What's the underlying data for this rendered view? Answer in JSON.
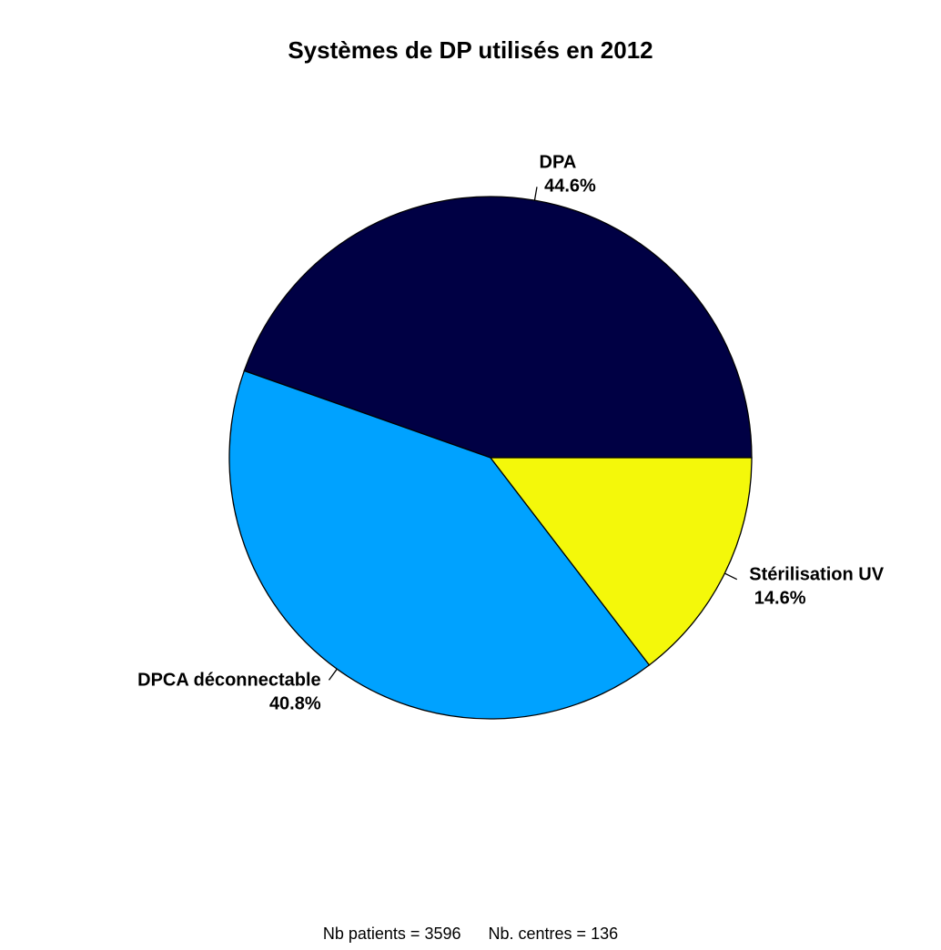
{
  "chart_data": {
    "type": "pie",
    "title": "Systèmes de DP utilisés en 2012",
    "slices": [
      {
        "label": "DPA",
        "value": 44.6,
        "percent_label": "44.6%",
        "color": "#000044"
      },
      {
        "label": "DPCA déconnectable",
        "value": 40.8,
        "percent_label": "40.8%",
        "color": "#00A2FF"
      },
      {
        "label": "Stérilisation UV",
        "value": 14.6,
        "percent_label": "14.6%",
        "color": "#F4F80A"
      }
    ],
    "start_angle_deg": 0,
    "direction": "counterclockwise"
  },
  "footer": {
    "patients_label": "Nb patients = ",
    "patients_value": "3596",
    "centres_label": "Nb. centres = ",
    "centres_value": "136"
  }
}
